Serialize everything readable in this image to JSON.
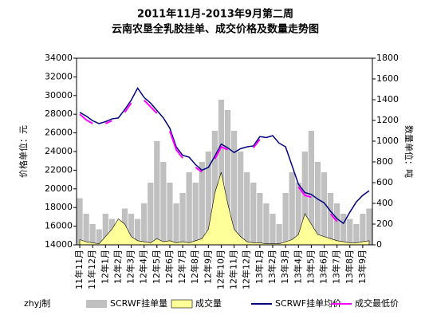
{
  "chart_data": {
    "type": "combo",
    "title": "2011年11月-2013年9月第二周",
    "subtitle": "云南农垦全乳胶挂单、成交价格及数量走势图",
    "y_label": "价格单位：元",
    "y2_label": "数量单位：吨",
    "note": "zhyj制",
    "categories": [
      "11年11月",
      null,
      "11年12月",
      null,
      "12年1月",
      null,
      "12年2月",
      null,
      "12年3月",
      null,
      "12年4月",
      null,
      "12年5月",
      null,
      "12年6月",
      null,
      "12年7月",
      null,
      "12年8月",
      null,
      "12年9月",
      null,
      "12年10月",
      null,
      "12年11月",
      null,
      "12年12月",
      null,
      "13年1月",
      null,
      "13年2月",
      null,
      "13年3月",
      null,
      "13年4月",
      null,
      "13年5月",
      null,
      "13年6月",
      null,
      "13年7月",
      null,
      "13年8月",
      null,
      "13年9月",
      null
    ],
    "ylim": [
      14000,
      34000
    ],
    "yticks": [
      14000,
      16000,
      18000,
      20000,
      22000,
      24000,
      26000,
      28000,
      30000,
      32000,
      34000
    ],
    "y2lim": [
      0,
      1800
    ],
    "y2ticks": [
      0,
      200,
      400,
      600,
      800,
      1000,
      1200,
      1400,
      1600,
      1800
    ],
    "series": [
      {
        "name": "SCRWF挂单量",
        "kind": "bar",
        "axis": "y2",
        "color": "#c0c0c0",
        "values": [
          450,
          300,
          200,
          150,
          300,
          250,
          200,
          350,
          300,
          250,
          400,
          600,
          1000,
          800,
          600,
          400,
          500,
          700,
          600,
          800,
          900,
          1100,
          1400,
          1300,
          1100,
          900,
          700,
          600,
          500,
          400,
          300,
          200,
          500,
          700,
          600,
          900,
          1100,
          800,
          700,
          500,
          400,
          300,
          250,
          200,
          300,
          350
        ]
      },
      {
        "name": "成交量",
        "kind": "area",
        "axis": "y2",
        "color": "#ffff99",
        "values": [
          50,
          30,
          20,
          10,
          80,
          150,
          250,
          200,
          80,
          40,
          30,
          20,
          60,
          30,
          40,
          20,
          30,
          20,
          40,
          60,
          150,
          500,
          700,
          400,
          150,
          80,
          30,
          20,
          20,
          10,
          10,
          10,
          30,
          50,
          100,
          300,
          200,
          100,
          80,
          60,
          40,
          30,
          20,
          20,
          30,
          40
        ]
      },
      {
        "name": "SCRWF挂单均价",
        "kind": "line",
        "color": "#000080",
        "values": [
          28200,
          27800,
          27300,
          27000,
          27200,
          27500,
          27600,
          28500,
          29500,
          30800,
          29800,
          29200,
          28400,
          27600,
          26500,
          24500,
          23600,
          23400,
          22600,
          22000,
          22300,
          23500,
          24800,
          24400,
          23900,
          24300,
          24500,
          24600,
          25600,
          25500,
          25700,
          24900,
          24500,
          22500,
          20500,
          19600,
          19400,
          18900,
          18500,
          17600,
          16800,
          16300,
          17500,
          18600,
          19300,
          19800
        ]
      },
      {
        "name": "成交最低价",
        "kind": "line",
        "color": "#ff00ff",
        "values": [
          28000,
          27400,
          27000,
          null,
          27000,
          27300,
          null,
          28200,
          29200,
          null,
          29500,
          28800,
          28100,
          null,
          26200,
          24200,
          23300,
          null,
          22300,
          21800,
          null,
          23200,
          24500,
          24200,
          null,
          24100,
          null,
          24400,
          25300,
          null,
          null,
          null,
          null,
          null,
          20200,
          19300,
          19100,
          null,
          null,
          17300,
          16500,
          null,
          null,
          null,
          null,
          null
        ]
      }
    ]
  }
}
